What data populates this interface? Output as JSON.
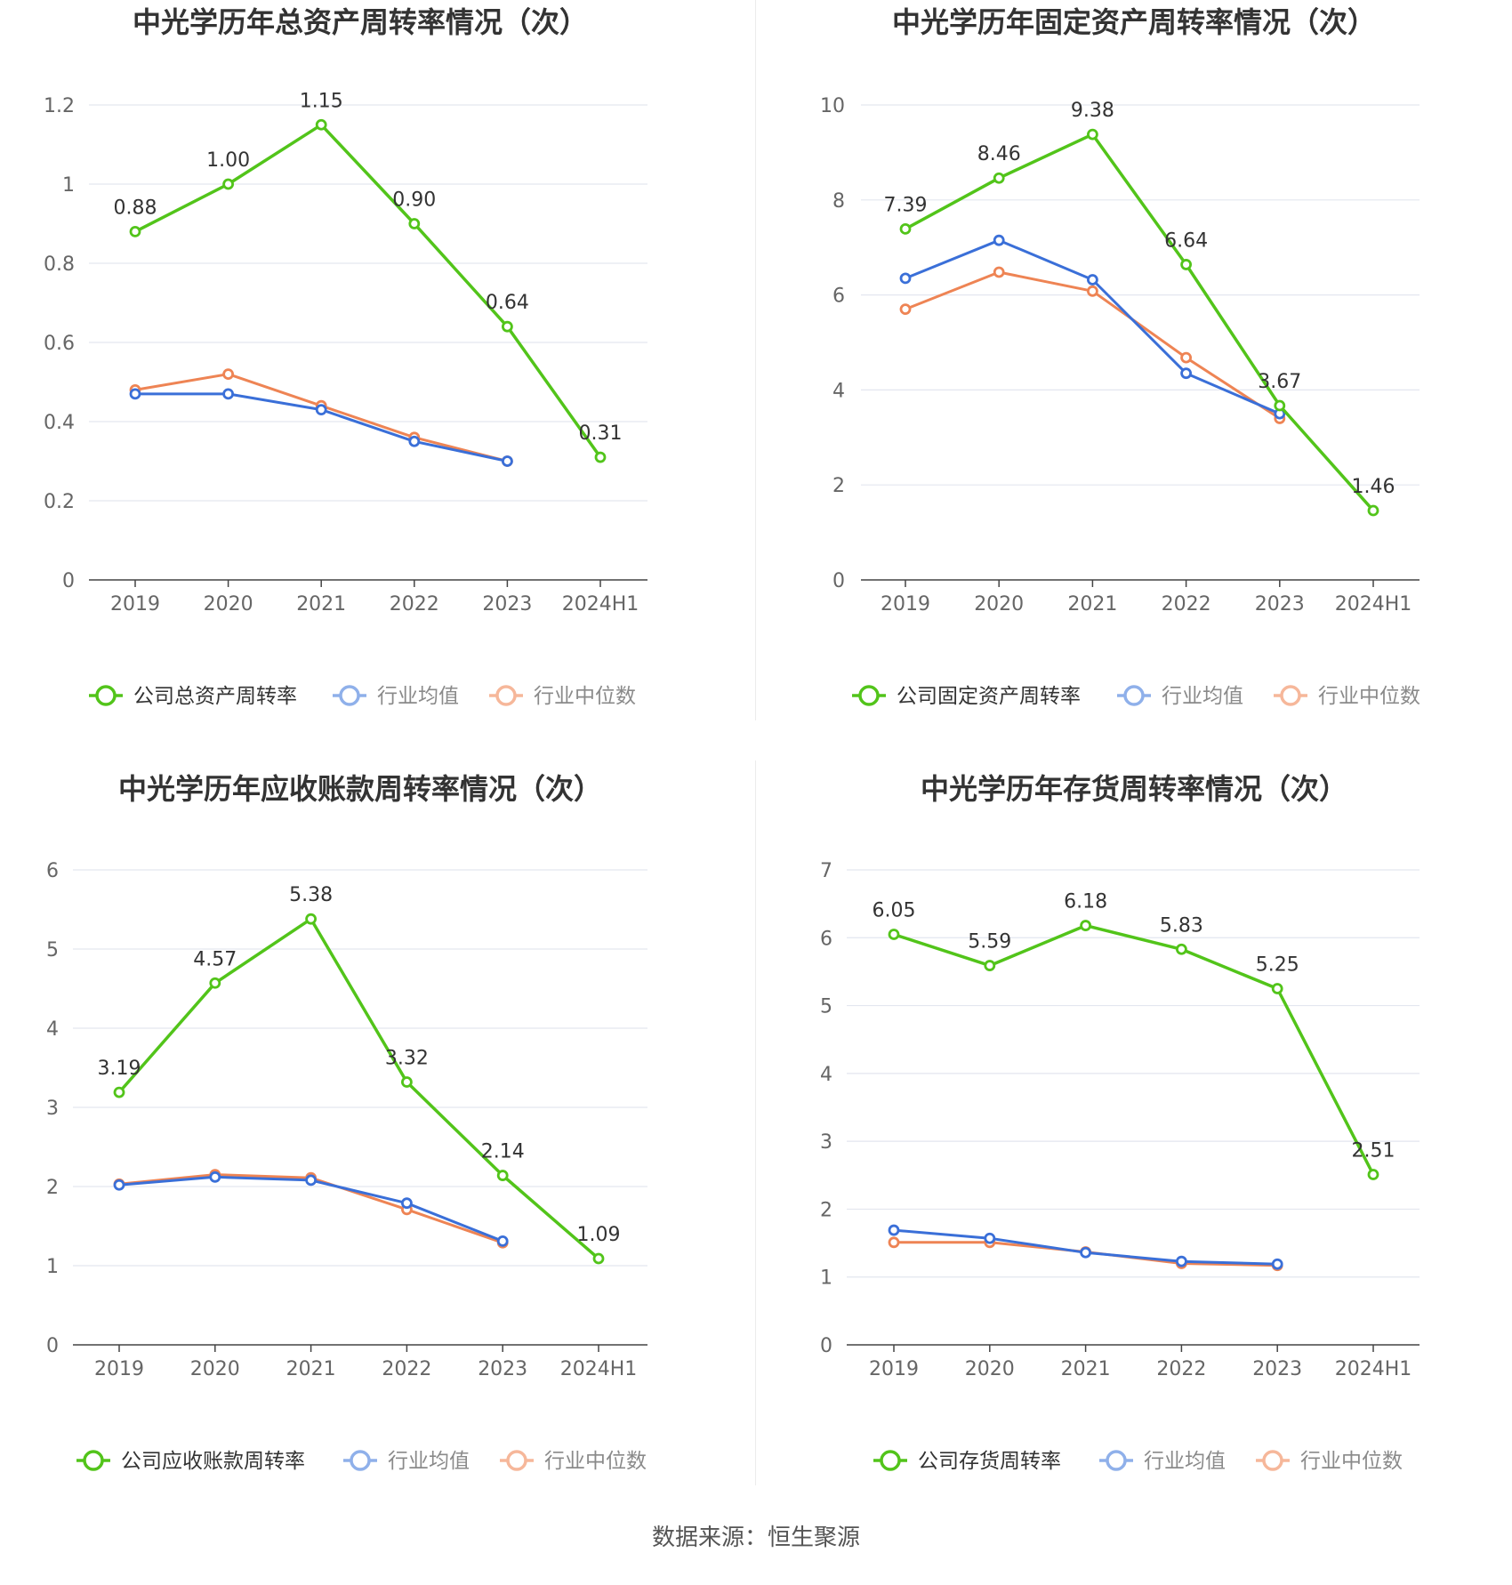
{
  "source_text": "数据来源：恒生聚源",
  "chart_data": [
    {
      "type": "line",
      "title": "中光学历年总资产周转率情况（次）",
      "categories": [
        "2019",
        "2020",
        "2021",
        "2022",
        "2023",
        "2024H1"
      ],
      "ylim": [
        0,
        1.2
      ],
      "yticks": [
        0,
        0.2,
        0.4,
        0.6,
        0.8,
        1,
        1.2
      ],
      "ytick_labels": [
        "0",
        "0.2",
        "0.4",
        "0.6",
        "0.8",
        "1",
        "1.2"
      ],
      "grid": true,
      "legend_position": "bottom",
      "series": [
        {
          "name": "公司总资产周转率",
          "color": "#52c41a",
          "values": [
            0.88,
            1.0,
            1.15,
            0.9,
            0.64,
            0.31
          ],
          "labels": [
            "0.88",
            "1.00",
            "1.15",
            "0.90",
            "0.64",
            "0.31"
          ]
        },
        {
          "name": "行业均值",
          "color": "#3a6fd8",
          "values": [
            0.47,
            0.47,
            0.43,
            0.35,
            0.3,
            null
          ]
        },
        {
          "name": "行业中位数",
          "color": "#ee8454",
          "values": [
            0.48,
            0.52,
            0.44,
            0.36,
            0.3,
            null
          ]
        }
      ]
    },
    {
      "type": "line",
      "title": "中光学历年固定资产周转率情况（次）",
      "categories": [
        "2019",
        "2020",
        "2021",
        "2022",
        "2023",
        "2024H1"
      ],
      "ylim": [
        0,
        10
      ],
      "yticks": [
        0,
        2,
        4,
        6,
        8,
        10
      ],
      "ytick_labels": [
        "0",
        "2",
        "4",
        "6",
        "8",
        "10"
      ],
      "grid": true,
      "legend_position": "bottom",
      "series": [
        {
          "name": "公司固定资产周转率",
          "color": "#52c41a",
          "values": [
            7.39,
            8.46,
            9.38,
            6.64,
            3.67,
            1.46
          ],
          "labels": [
            "7.39",
            "8.46",
            "9.38",
            "6.64",
            "3.67",
            "1.46"
          ]
        },
        {
          "name": "行业均值",
          "color": "#3a6fd8",
          "values": [
            6.35,
            7.15,
            6.32,
            4.35,
            3.5,
            null
          ]
        },
        {
          "name": "行业中位数",
          "color": "#ee8454",
          "values": [
            5.7,
            6.48,
            6.08,
            4.68,
            3.4,
            null
          ]
        }
      ]
    },
    {
      "type": "line",
      "title": "中光学历年应收账款周转率情况（次）",
      "categories": [
        "2019",
        "2020",
        "2021",
        "2022",
        "2023",
        "2024H1"
      ],
      "ylim": [
        0,
        6
      ],
      "yticks": [
        0,
        1,
        2,
        3,
        4,
        5,
        6
      ],
      "ytick_labels": [
        "0",
        "1",
        "2",
        "3",
        "4",
        "5",
        "6"
      ],
      "grid": true,
      "legend_position": "bottom",
      "series": [
        {
          "name": "公司应收账款周转率",
          "color": "#52c41a",
          "values": [
            3.19,
            4.57,
            5.38,
            3.32,
            2.14,
            1.09
          ],
          "labels": [
            "3.19",
            "4.57",
            "5.38",
            "3.32",
            "2.14",
            "1.09"
          ]
        },
        {
          "name": "行业均值",
          "color": "#3a6fd8",
          "values": [
            2.02,
            2.12,
            2.08,
            1.79,
            1.31,
            null
          ]
        },
        {
          "name": "行业中位数",
          "color": "#ee8454",
          "values": [
            2.03,
            2.15,
            2.11,
            1.71,
            1.29,
            null
          ]
        }
      ]
    },
    {
      "type": "line",
      "title": "中光学历年存货周转率情况（次）",
      "categories": [
        "2019",
        "2020",
        "2021",
        "2022",
        "2023",
        "2024H1"
      ],
      "ylim": [
        0,
        7
      ],
      "yticks": [
        0,
        1,
        2,
        3,
        4,
        5,
        6,
        7
      ],
      "ytick_labels": [
        "0",
        "1",
        "2",
        "3",
        "4",
        "5",
        "6",
        "7"
      ],
      "grid": true,
      "legend_position": "bottom",
      "series": [
        {
          "name": "公司存货周转率",
          "color": "#52c41a",
          "values": [
            6.05,
            5.59,
            6.18,
            5.83,
            5.25,
            2.51
          ],
          "labels": [
            "6.05",
            "5.59",
            "6.18",
            "5.83",
            "5.25",
            "2.51"
          ]
        },
        {
          "name": "行业均值",
          "color": "#3a6fd8",
          "values": [
            1.69,
            1.57,
            1.36,
            1.23,
            1.19,
            null
          ]
        },
        {
          "name": "行业中位数",
          "color": "#ee8454",
          "values": [
            1.51,
            1.51,
            1.37,
            1.2,
            1.17,
            null
          ]
        }
      ]
    }
  ]
}
